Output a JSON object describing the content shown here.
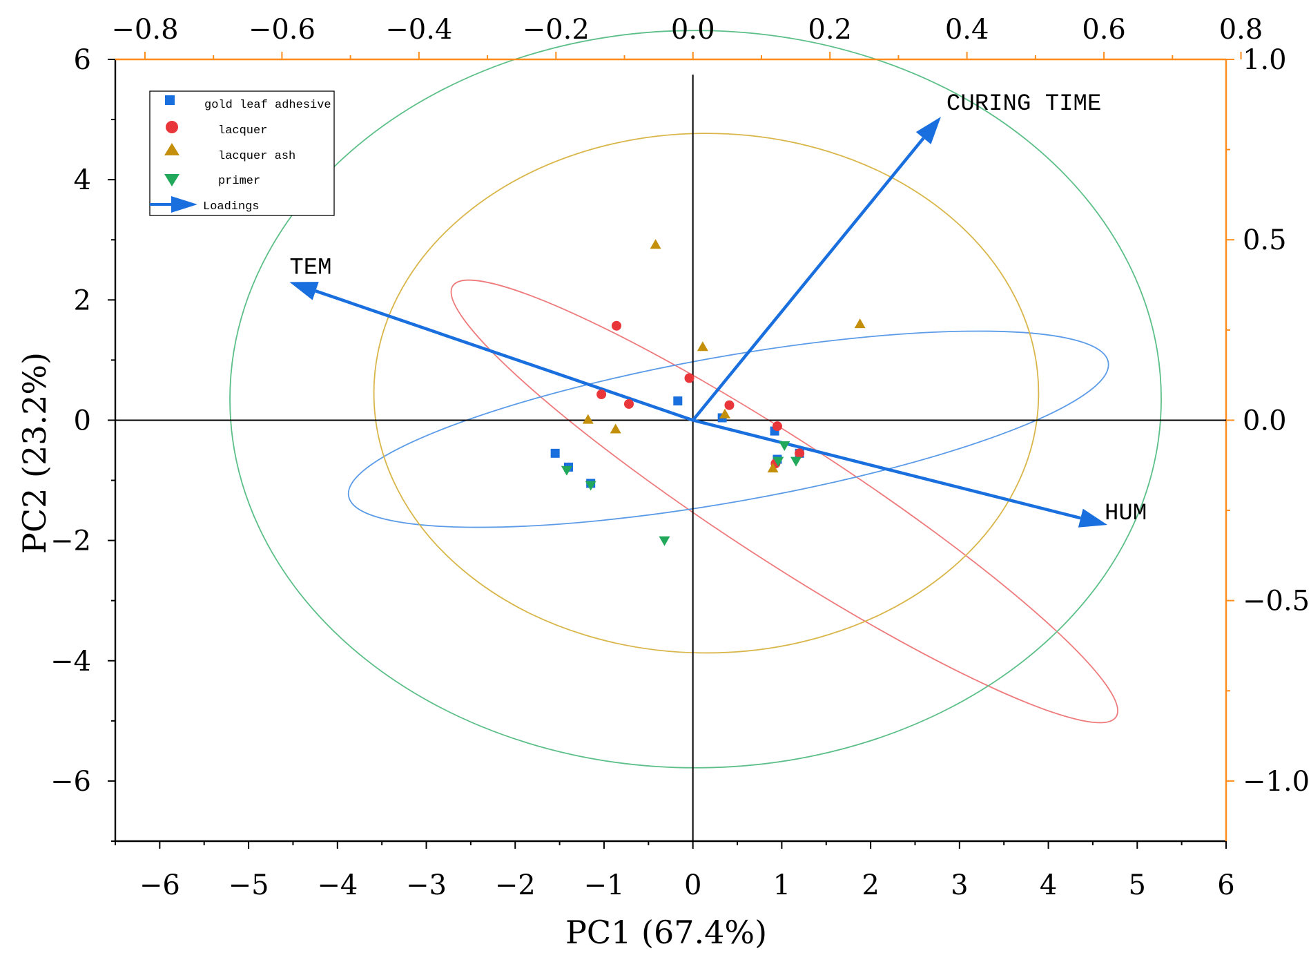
{
  "chart_data": {
    "type": "scatter",
    "subtype": "pca-biplot",
    "title": "",
    "xlabel": "PC1 (67.4%)",
    "ylabel": "PC2 (23.2%)",
    "xlim": [
      -6.5,
      6
    ],
    "ylim": [
      -7,
      6
    ],
    "xticks": [
      -6,
      -5,
      -4,
      -3,
      -2,
      -1,
      0,
      1,
      2,
      3,
      4,
      5,
      6
    ],
    "xtick_labels": [
      "−6",
      "−5",
      "−4",
      "−3",
      "−2",
      "−1",
      "0",
      "1",
      "2",
      "3",
      "4",
      "5",
      "6"
    ],
    "yticks": [
      6,
      4,
      2,
      0,
      -2,
      -4,
      -6
    ],
    "ytick_labels": [
      "6",
      "4",
      "2",
      "0",
      "−2",
      "−4",
      "−6"
    ],
    "top_axis": {
      "lim": [
        -0.8433,
        0.7783
      ],
      "ticks": [
        -0.8,
        -0.6,
        -0.4,
        -0.2,
        0.0,
        0.2,
        0.4,
        0.6,
        0.8
      ],
      "labels": [
        "−0.8",
        "−0.6",
        "−0.4",
        "−0.2",
        "0.0",
        "0.2",
        "0.4",
        "0.6",
        "0.8"
      ],
      "color": "#ff8c1a"
    },
    "right_axis": {
      "lim": [
        -1.1667,
        1.0
      ],
      "ticks": [
        1.0,
        0.5,
        0.0,
        -0.5,
        -1.0
      ],
      "labels": [
        "1.0",
        "0.5",
        "0.0",
        "−0.5",
        "−1.0"
      ],
      "color": "#ff8c1a"
    },
    "grid": false,
    "legend_position": "top-left",
    "series": [
      {
        "name": "gold leaf adhesive",
        "marker": "square",
        "color": "#1a6fdf",
        "points": [
          [
            -1.55,
            -0.55
          ],
          [
            -1.4,
            -0.78
          ],
          [
            -1.15,
            -1.05
          ],
          [
            -0.17,
            0.32
          ],
          [
            0.33,
            0.04
          ],
          [
            0.92,
            -0.18
          ],
          [
            0.95,
            -0.65
          ],
          [
            1.2,
            -0.55
          ]
        ]
      },
      {
        "name": "lacquer",
        "marker": "circle",
        "color": "#e8363a",
        "points": [
          [
            -0.86,
            1.57
          ],
          [
            -1.03,
            0.43
          ],
          [
            -0.72,
            0.27
          ],
          [
            -0.04,
            0.7
          ],
          [
            0.41,
            0.25
          ],
          [
            0.95,
            -0.1
          ],
          [
            0.93,
            -0.72
          ],
          [
            1.2,
            -0.55
          ]
        ]
      },
      {
        "name": "lacquer ash",
        "marker": "triangle-up",
        "color": "#c4900c",
        "points": [
          [
            -0.42,
            2.92
          ],
          [
            0.11,
            1.22
          ],
          [
            -1.18,
            0.01
          ],
          [
            -0.87,
            -0.15
          ],
          [
            0.36,
            0.1
          ],
          [
            0.9,
            -0.8
          ],
          [
            1.88,
            1.6
          ]
        ]
      },
      {
        "name": "primer",
        "marker": "triangle-down",
        "color": "#22a85a",
        "points": [
          [
            -1.42,
            -0.83
          ],
          [
            -1.15,
            -1.08
          ],
          [
            -0.32,
            -2.0
          ],
          [
            1.03,
            -0.42
          ],
          [
            1.16,
            -0.68
          ],
          [
            0.96,
            -0.68
          ]
        ]
      }
    ],
    "loadings": [
      {
        "name": "CURING TIME",
        "pc1": 0.362,
        "pc2": 0.841
      },
      {
        "name": "TEM",
        "pc1": -0.589,
        "pc2": 0.383
      },
      {
        "name": "HUM",
        "pc1": 0.605,
        "pc2": -0.29
      }
    ],
    "legend_loadings_label": "Loadings",
    "loading_color": "#1a6fdf",
    "confidence_ellipses": [
      {
        "group": "lacquer",
        "color": "#ef7a7c",
        "cx": 1.03,
        "cy": -1.35,
        "rx": 4.45,
        "ry": 1.0,
        "angle_deg": -33
      },
      {
        "group": "gold leaf adhesive",
        "color": "#5b9be8",
        "cx": 0.4,
        "cy": -0.15,
        "rx": 4.34,
        "ry": 1.21,
        "angle_deg": 10
      },
      {
        "group": "lacquer ash",
        "color": "#d9b64a",
        "cx": 0.15,
        "cy": 0.45,
        "rx": 3.74,
        "ry": 4.32,
        "angle_deg": 0
      },
      {
        "group": "primer",
        "color": "#5cbf88",
        "cx": 0.03,
        "cy": 0.35,
        "rx": 5.24,
        "ry": 6.13,
        "angle_deg": 0
      }
    ]
  }
}
